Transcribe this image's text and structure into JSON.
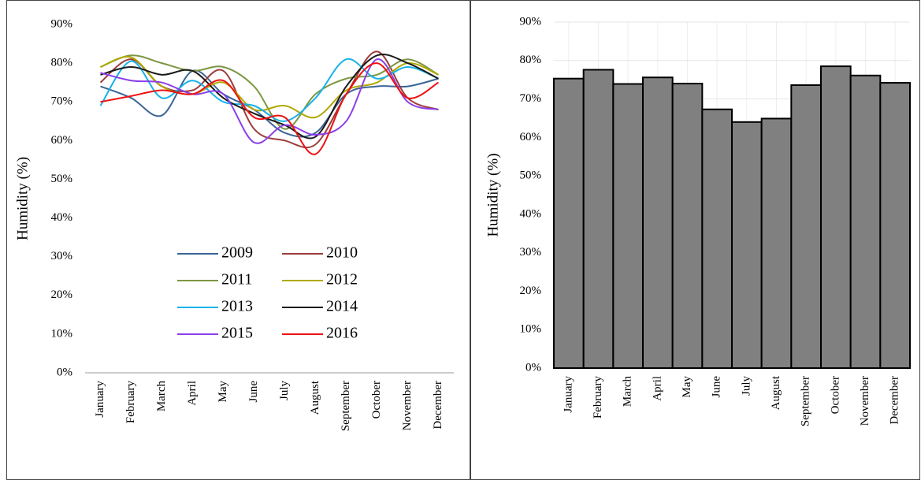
{
  "chart_data": [
    {
      "type": "line",
      "y_label": "Humidity (%)",
      "categories": [
        "January",
        "February",
        "March",
        "April",
        "May",
        "June",
        "July",
        "August",
        "September",
        "October",
        "November",
        "December"
      ],
      "ylim": [
        0,
        90
      ],
      "yticks": [
        {
          "value": 0,
          "label": "0%"
        },
        {
          "value": 10,
          "label": "10%"
        },
        {
          "value": 20,
          "label": "20%"
        },
        {
          "value": 30,
          "label": "30%"
        },
        {
          "value": 40,
          "label": "40%"
        },
        {
          "value": 50,
          "label": "50%"
        },
        {
          "value": 60,
          "label": "60%"
        },
        {
          "value": 70,
          "label": "70%"
        },
        {
          "value": 80,
          "label": "80%"
        },
        {
          "value": 90,
          "label": "90%"
        }
      ],
      "grid": false,
      "legend": "lower center",
      "series": [
        {
          "name": "2009",
          "color": "#3b6597",
          "values": [
            74,
            71,
            66.5,
            78,
            72,
            68,
            62,
            62,
            72,
            74,
            74,
            76
          ]
        },
        {
          "name": "2010",
          "color": "#9c3d3a",
          "values": [
            75,
            81,
            74,
            73,
            78,
            63,
            60,
            59,
            72,
            83,
            71,
            68
          ]
        },
        {
          "name": "2011",
          "color": "#7d9641",
          "values": [
            79,
            82,
            80,
            78,
            79,
            74,
            63,
            72,
            76,
            77,
            81,
            77
          ]
        },
        {
          "name": "2012",
          "color": "#b0a800",
          "values": [
            79,
            81.5,
            74,
            72,
            75,
            68,
            69,
            66,
            73,
            75,
            80,
            77
          ]
        },
        {
          "name": "2013",
          "color": "#17b2ea",
          "values": [
            69,
            80.5,
            71,
            75.5,
            70,
            69,
            65,
            71,
            81,
            76,
            79,
            76
          ]
        },
        {
          "name": "2014",
          "color": "#1a1a1a",
          "values": [
            77,
            79,
            77,
            78,
            71,
            67,
            64,
            61,
            74,
            82,
            80,
            76
          ]
        },
        {
          "name": "2015",
          "color": "#8b3fe8",
          "values": [
            77.5,
            75.5,
            75,
            72,
            72,
            59.5,
            64,
            61.5,
            65,
            81,
            70,
            68
          ]
        },
        {
          "name": "2016",
          "color": "#ee1111",
          "values": [
            70,
            71.5,
            73,
            72,
            75.5,
            66,
            66,
            56.5,
            72,
            80,
            71,
            75
          ]
        }
      ]
    },
    {
      "type": "bar",
      "y_label": "Humidity (%)",
      "categories": [
        "January",
        "February",
        "March",
        "April",
        "May",
        "June",
        "July",
        "August",
        "September",
        "October",
        "November",
        "December"
      ],
      "values": [
        75.3,
        77.6,
        73.9,
        75.6,
        74,
        67.3,
        64,
        64.9,
        73.6,
        78.5,
        76.1,
        74.2
      ],
      "color": "#808080",
      "ylim": [
        0,
        90
      ],
      "yticks": [
        {
          "value": 0,
          "label": "0%"
        },
        {
          "value": 10,
          "label": "10%"
        },
        {
          "value": 20,
          "label": "20%"
        },
        {
          "value": 30,
          "label": "30%"
        },
        {
          "value": 40,
          "label": "40%"
        },
        {
          "value": 50,
          "label": "50%"
        },
        {
          "value": 60,
          "label": "60%"
        },
        {
          "value": 70,
          "label": "70%"
        },
        {
          "value": 80,
          "label": "80%"
        },
        {
          "value": 90,
          "label": "90%"
        }
      ],
      "grid": true
    }
  ]
}
